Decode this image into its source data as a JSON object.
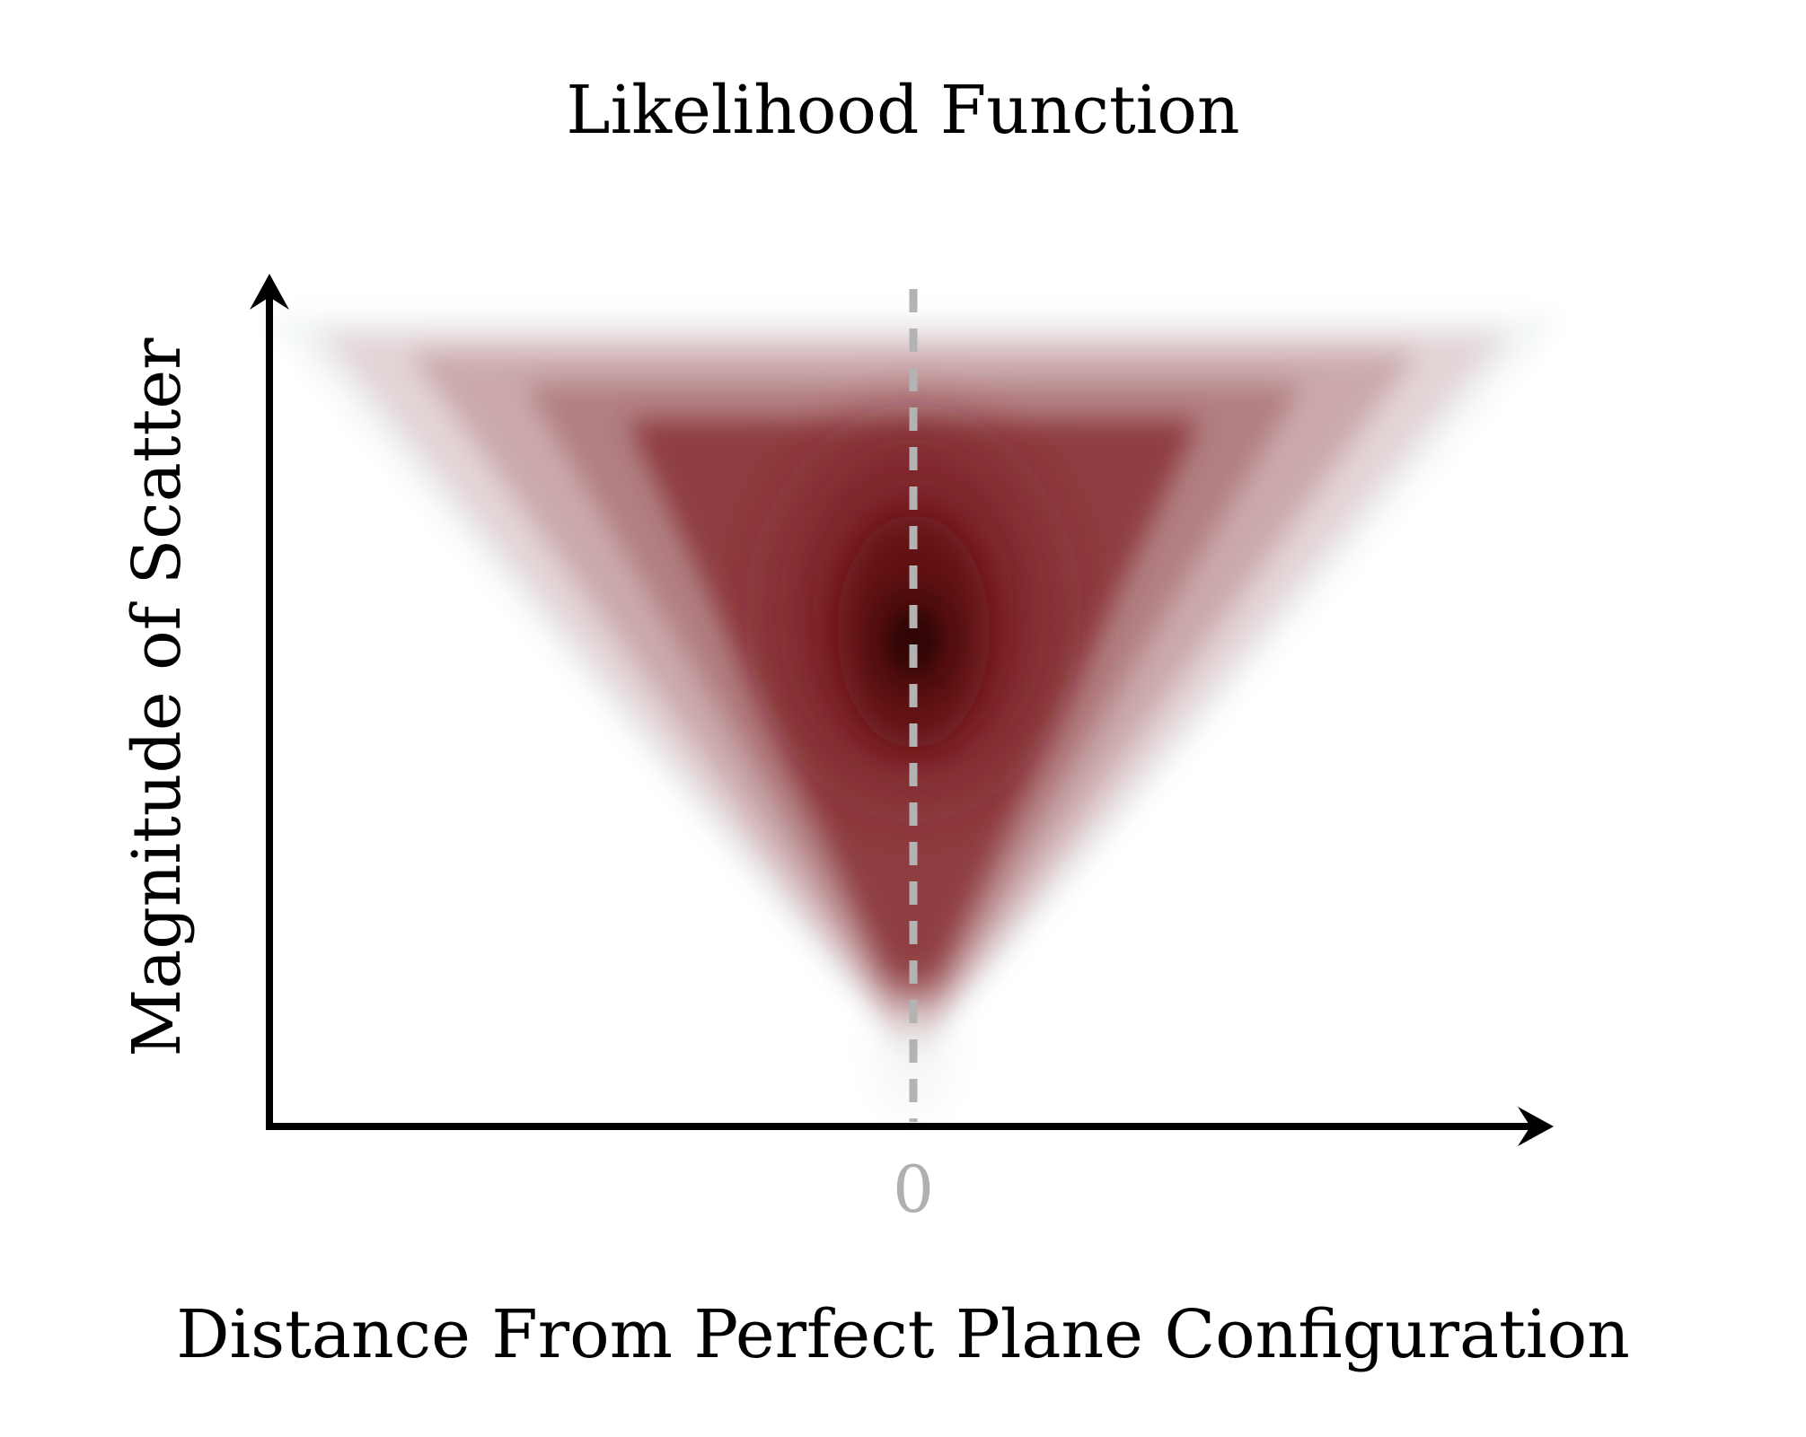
{
  "chart_data": {
    "type": "heatmap",
    "title": "Likelihood Function",
    "xlabel": "Distance From Perfect Plane Configuration",
    "ylabel": "Magnitude of Scatter",
    "x_ticks": [
      {
        "value": 0,
        "label": "0"
      }
    ],
    "reference_lines": [
      {
        "orientation": "vertical",
        "x": 0,
        "style": "dashed",
        "color": "#b3b3b3"
      }
    ],
    "density": {
      "description_shape": "cone",
      "peak": {
        "x": 0,
        "y": 0.57
      },
      "cone_apex": {
        "x": 0,
        "y": 0.08
      },
      "cone_top": {
        "y": 0.92,
        "half_width": 1.0
      },
      "color_scale": [
        "#ffffff",
        "#f0f3f5",
        "#c9a6a9",
        "#8c3a3d",
        "#5e0b0e",
        "#1a0000"
      ]
    },
    "arrows": {
      "x_axis": true,
      "y_axis": true
    },
    "grid": false
  },
  "colors": {
    "axis": "#000000",
    "tick_label": "#b0b0b0",
    "reference_line": "#b3b3b3",
    "density_core": "#5e0b0e"
  }
}
